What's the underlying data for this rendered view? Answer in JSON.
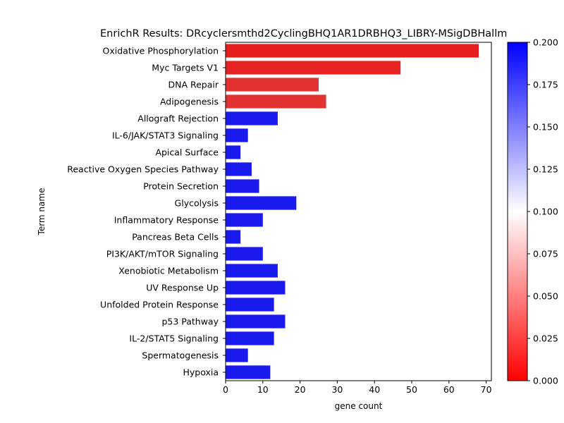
{
  "chart_data": {
    "type": "bar",
    "orientation": "horizontal",
    "title": "EnrichR Results: DRcyclersmthd2CyclingBHQ1AR1DRBHQ3_LIBRY-MSigDBHallm",
    "xlabel": "gene count",
    "ylabel": "Term name",
    "xlim": [
      0,
      71.4
    ],
    "xticks": [
      0,
      10,
      20,
      30,
      40,
      50,
      60,
      70
    ],
    "grid": false,
    "categories": [
      "Oxidative Phosphorylation",
      "Myc Targets V1",
      "DNA Repair",
      "Adipogenesis",
      "Allograft Rejection",
      "IL-6/JAK/STAT3 Signaling",
      "Apical Surface",
      "Reactive Oxygen Species Pathway",
      "Protein Secretion",
      "Glycolysis",
      "Inflammatory Response",
      "Pancreas Beta Cells",
      "PI3K/AKT/mTOR  Signaling",
      "Xenobiotic Metabolism",
      "UV Response Up",
      "Unfolded Protein Response",
      "p53 Pathway",
      "IL-2/STAT5 Signaling",
      "Spermatogenesis",
      "Hypoxia"
    ],
    "values": [
      68,
      47,
      25,
      27,
      14,
      6,
      4,
      7,
      9,
      19,
      10,
      4,
      10,
      14,
      16,
      13,
      16,
      13,
      6,
      12
    ],
    "bar_colors": [
      "#e61e1e",
      "#e62222",
      "#e33030",
      "#e33232",
      "#1a1aef",
      "#1a1aef",
      "#1a1aef",
      "#1a1aef",
      "#1a1aef",
      "#1a1aef",
      "#1a1aef",
      "#1a1aef",
      "#1a1aef",
      "#1a1aef",
      "#1a1aef",
      "#1a1aef",
      "#1a1aef",
      "#1a1aef",
      "#1a1aef",
      "#1a1aef"
    ],
    "colorbar": {
      "range": [
        0.0,
        0.2
      ],
      "ticks": [
        "0.000",
        "0.025",
        "0.050",
        "0.075",
        "0.100",
        "0.125",
        "0.150",
        "0.175",
        "0.200"
      ],
      "colors": [
        "#ff0000",
        "#ffffff",
        "#0000ff"
      ]
    }
  }
}
